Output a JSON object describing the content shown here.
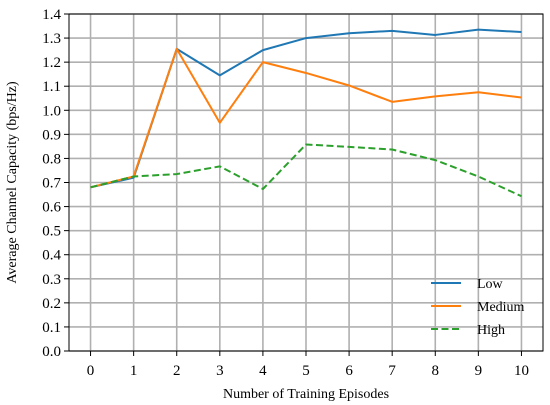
{
  "chart_data": {
    "type": "line",
    "xlabel": "Number of Training Episodes",
    "ylabel": "Average Channel Capacity (bps/Hz)",
    "x": [
      0,
      1,
      2,
      3,
      4,
      5,
      6,
      7,
      8,
      9,
      10
    ],
    "xlim": [
      -0.5,
      10.5
    ],
    "ylim": [
      0.0,
      1.4
    ],
    "xticks": [
      "0",
      "1",
      "2",
      "3",
      "4",
      "5",
      "6",
      "7",
      "8",
      "9",
      "10"
    ],
    "yticks": [
      "0.0",
      "0.1",
      "0.2",
      "0.3",
      "0.4",
      "0.5",
      "0.6",
      "0.7",
      "0.8",
      "0.9",
      "1.0",
      "1.1",
      "1.2",
      "1.3",
      "1.4"
    ],
    "grid": true,
    "legend_position": "lower-right",
    "series": [
      {
        "name": "Low",
        "color": "#1f77b4",
        "dash": "solid",
        "values": [
          0.68,
          0.72,
          1.255,
          1.145,
          1.25,
          1.3,
          1.32,
          1.33,
          1.313,
          1.335,
          1.325
        ]
      },
      {
        "name": "Medium",
        "color": "#ff7f0e",
        "dash": "solid",
        "values": [
          0.68,
          0.725,
          1.255,
          0.948,
          1.2,
          1.155,
          1.103,
          1.035,
          1.058,
          1.075,
          1.053
        ]
      },
      {
        "name": "High",
        "color": "#2ca02c",
        "dash": "dashed",
        "values": [
          0.68,
          0.725,
          0.735,
          0.767,
          0.673,
          0.858,
          0.848,
          0.837,
          0.793,
          0.725,
          0.643
        ]
      }
    ]
  }
}
